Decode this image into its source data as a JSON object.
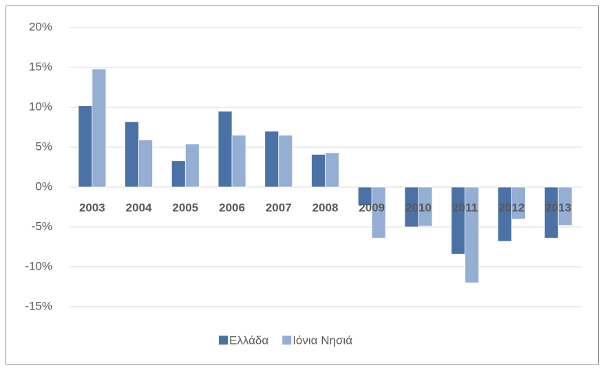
{
  "chart_data": {
    "type": "bar",
    "categories": [
      "2003",
      "2004",
      "2005",
      "2006",
      "2007",
      "2008",
      "2009",
      "2010",
      "2011",
      "2012",
      "2013"
    ],
    "series": [
      {
        "name": "Ελλάδα",
        "color": "#4a72a6",
        "values": [
          10.2,
          8.2,
          3.3,
          9.5,
          7.0,
          4.1,
          -2.3,
          -5.0,
          -8.4,
          -6.8,
          -6.4
        ]
      },
      {
        "name": "Ιόνια Νησιά",
        "color": "#95aed4",
        "values": [
          14.8,
          5.9,
          5.4,
          6.5,
          6.5,
          4.3,
          -6.4,
          -4.9,
          -12.0,
          -4.0,
          -4.8
        ]
      }
    ],
    "ylim": [
      -15,
      20
    ],
    "yticks": [
      {
        "value": -15,
        "label": "-15%"
      },
      {
        "value": -10,
        "label": "-10%"
      },
      {
        "value": -5,
        "label": "-5%"
      },
      {
        "value": 0,
        "label": "0%"
      },
      {
        "value": 5,
        "label": "5%"
      },
      {
        "value": 10,
        "label": "10%"
      },
      {
        "value": 15,
        "label": "15%"
      },
      {
        "value": 20,
        "label": "20%"
      }
    ],
    "grid": true,
    "legend": "bottom"
  }
}
